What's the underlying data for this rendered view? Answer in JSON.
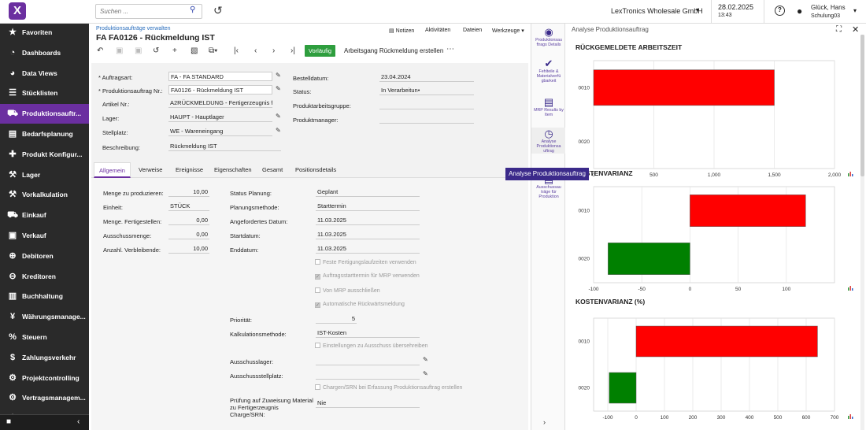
{
  "topbar": {
    "search_placeholder": "Suchen ...",
    "company": "LexTronics Wholesale GmbH",
    "date": "28.02.2025",
    "time": "13:43",
    "user_name": "Glück, Hans",
    "user_org": "Schulung03"
  },
  "sidebar": {
    "items": [
      {
        "label": "Favoriten",
        "icon": "star-icon",
        "glyph": "★"
      },
      {
        "label": "Dashboards",
        "icon": "dashboard-icon",
        "glyph": "◔"
      },
      {
        "label": "Data Views",
        "icon": "data-views-icon",
        "glyph": "◕"
      },
      {
        "label": "Stücklisten",
        "icon": "list-icon",
        "glyph": "☰"
      },
      {
        "label": "Produktionsauftr...",
        "icon": "truck-icon",
        "glyph": "⛟"
      },
      {
        "label": "Bedarfsplanung",
        "icon": "forklift-icon",
        "glyph": "▤"
      },
      {
        "label": "Produkt Konfigur...",
        "icon": "puzzle-icon",
        "glyph": "✚"
      },
      {
        "label": "Lager",
        "icon": "wrench-icon",
        "glyph": "⚒"
      },
      {
        "label": "Vorkalkulation",
        "icon": "hammer-icon",
        "glyph": "⚒"
      },
      {
        "label": "Einkauf",
        "icon": "cart-icon",
        "glyph": "⛟"
      },
      {
        "label": "Verkauf",
        "icon": "sale-icon",
        "glyph": "▣"
      },
      {
        "label": "Debitoren",
        "icon": "plus-circle-icon",
        "glyph": "⊕"
      },
      {
        "label": "Kreditoren",
        "icon": "minus-circle-icon",
        "glyph": "⊖"
      },
      {
        "label": "Buchhaltung",
        "icon": "book-icon",
        "glyph": "▥"
      },
      {
        "label": "Währungsmanage...",
        "icon": "currency-icon",
        "glyph": "¥"
      },
      {
        "label": "Steuern",
        "icon": "percent-icon",
        "glyph": "%"
      },
      {
        "label": "Zahlungsverkehr",
        "icon": "dollar-icon",
        "glyph": "$"
      },
      {
        "label": "Projektcontrolling",
        "icon": "project-icon",
        "glyph": "⚙"
      },
      {
        "label": "Vertragsmanagem...",
        "icon": "contract-icon",
        "glyph": "⚙"
      },
      {
        "label": "",
        "icon": "more-icon",
        "glyph": "⚙"
      }
    ]
  },
  "main": {
    "breadcrumb": "Produktionsaufträge verwalten",
    "title": "FA FA0126 - Rückmeldung IST",
    "header_links": [
      "Notizen",
      "Aktivitäten",
      "Dateien",
      "Werkzeuge"
    ],
    "vorlauf_label": "Vorläufig",
    "action_label": "Arbeitsgang Rückmeldung erstellen",
    "fields": {
      "auftragsart_label": "Auftragsart:",
      "auftragsart": "FA - FA STANDARD",
      "pa_nr_label": "Produktionsauftrag Nr.:",
      "pa_nr": "FA0126 - Rückmeldung IST",
      "artikel_label": "Artikel Nr.:",
      "artikel": "A2RÜCKMELDUNG - Fertigerzeugnis für •",
      "lager_label": "Lager:",
      "lager": "HAUPT - Hauptlager",
      "stellplatz_label": "Stellplatz:",
      "stellplatz": "WE - Wareneingang",
      "beschreibung_label": "Beschreibung:",
      "beschreibung": "Rückmeldung IST",
      "bestelldatum_label": "Bestelldatum:",
      "bestelldatum": "23.04.2024",
      "status_label": "Status:",
      "status": "In Verarbeitun•",
      "gruppe_label": "Produktarbeitsgruppe:",
      "manager_label": "Produktmanager:"
    },
    "tabs": [
      "Allgemein",
      "Verweise",
      "Ereignisse",
      "Eigenschaften",
      "Gesamt",
      "Positionsdetails"
    ],
    "general": {
      "menge_label": "Menge zu produzieren:",
      "menge": "10,00",
      "einheit_label": "Einheit:",
      "einheit": "STÜCK",
      "fertig_label": "Menge. Fertigestellen:",
      "fertig": "0,00",
      "aus_label": "Ausschussmenge:",
      "aus": "0,00",
      "verbl_label": "Anzahl. Verbleibende:",
      "verbl": "10,00",
      "statusplan_label": "Status Planung:",
      "statusplan": "Geplant",
      "methode_label": "Planungsmethode:",
      "methode": "Starttermin",
      "angef_label": "Angefordertes Datum:",
      "angef": "11.03.2025",
      "start_label": "Startdatum:",
      "start": "11.03.2025",
      "end_label": "Enddatum:",
      "end": "11.03.2025",
      "chk1": "Feste Fertigungslaufzeiten verwenden",
      "chk2": "Auftragsstarttermin für MRP verwenden",
      "chk3": "Von MRP ausschließen",
      "chk4": "Automatische Rückwärtsmeldung",
      "prio_label": "Priorität:",
      "prio": "5",
      "kalk_label": "Kalkulationsmethode:",
      "kalk": "IST-Kosten",
      "chk5": "Einstellungen zu Ausschuss übersehreiben",
      "auslager_label": "Ausschusslager:",
      "ausstell_label": "Ausschussstellplatz:",
      "chk6": "Chargen/SRN bei Erfassung Produktionsauftrag erstellen",
      "pruef_label": "Prüfung auf Zuweisung Material zu Fertigerzeugnis Charge/SRN:",
      "pruef": "Nie"
    }
  },
  "rightbar": {
    "items": [
      {
        "label": "Produktionsau ftrags Details",
        "icon": "eye-icon",
        "glyph": "◉"
      },
      {
        "label": "Fehlteile & Materialverfü gbarkeit",
        "icon": "check-circle-icon",
        "glyph": "✔"
      },
      {
        "label": "MRP Results by Item",
        "icon": "document-icon",
        "glyph": "▤"
      },
      {
        "label": "Analyse Produktionsa uftrag",
        "icon": "gauge-icon",
        "glyph": "◷"
      },
      {
        "label": "Ausschussau träge für Produktion",
        "icon": "waste-icon",
        "glyph": "▤"
      }
    ],
    "tooltip": "Analyse Produktionsauftrag"
  },
  "analysis": {
    "title": "Analyse Produktionsauftrag"
  },
  "chart_data": [
    {
      "type": "bar",
      "orientation": "horizontal",
      "title": "RÜCKGEMELDETE ARBEITSZEIT",
      "categories": [
        "0010",
        "0020"
      ],
      "values": [
        1500,
        0
      ],
      "xlim": [
        0,
        2000
      ],
      "xticks": [
        "0",
        "500",
        "1,000",
        "1,500",
        "2,000"
      ],
      "colors": [
        "#ff0000",
        "#008000"
      ],
      "grid": true
    },
    {
      "type": "bar",
      "orientation": "horizontal",
      "title": "KOSTENVARIANZ",
      "categories": [
        "0010",
        "0020"
      ],
      "values": [
        120,
        -85
      ],
      "xlim": [
        -100,
        150
      ],
      "xticks": [
        "-100",
        "-50",
        "0",
        "50",
        "100"
      ],
      "colors": [
        "#ff0000",
        "#008000"
      ],
      "grid": true
    },
    {
      "type": "bar",
      "orientation": "horizontal",
      "title": "KOSTENVARIANZ (%)",
      "categories": [
        "0010",
        "0020"
      ],
      "values": [
        640,
        -95
      ],
      "xlim": [
        -150,
        700
      ],
      "xticks": [
        "-100",
        "0",
        "100",
        "200",
        "300",
        "400",
        "500",
        "600",
        "700"
      ],
      "colors": [
        "#ff0000",
        "#008000"
      ],
      "grid": true
    }
  ]
}
